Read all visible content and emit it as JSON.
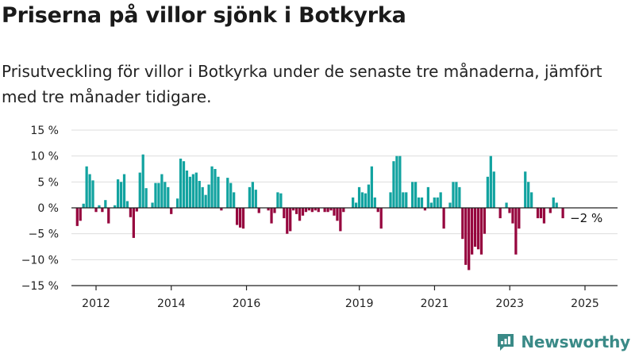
{
  "title": "Priserna på villor sjönk i Botkyrka",
  "subtitle": "Prisutveckling för villor i Botkyrka under de senaste tre månaderna, jämfört med tre månader tidigare.",
  "brand": {
    "name": "Newsworthy",
    "icon": "newsworthy-logo-icon"
  },
  "colors": {
    "positive": "#12a3a0",
    "negative": "#96063e",
    "grid": "#dddddd",
    "axis": "#222222",
    "brand": "#3a8a87"
  },
  "chart_data": {
    "type": "bar",
    "x_unit": "year",
    "x_start": 2011.5,
    "x_step": 0.0833,
    "values": [
      -3.5,
      -2.5,
      0.8,
      8.0,
      6.5,
      5.3,
      -0.8,
      0.5,
      -0.8,
      1.5,
      -3.0,
      0,
      0.5,
      5.5,
      5.0,
      6.5,
      1.3,
      -1.8,
      -5.8,
      -0.7,
      6.8,
      10.3,
      3.8,
      0,
      1.0,
      4.8,
      4.8,
      6.5,
      5.0,
      4.0,
      -1.2,
      0,
      1.8,
      9.5,
      9.0,
      7.2,
      6.0,
      6.5,
      6.8,
      5.2,
      4.0,
      2.5,
      4.5,
      8.0,
      7.5,
      6.0,
      -0.5,
      0,
      5.8,
      4.8,
      3.0,
      -3.3,
      -3.8,
      -4.0,
      0,
      4.0,
      5.0,
      3.5,
      -1.0,
      0,
      0,
      -0.5,
      -3.0,
      -1.0,
      3.0,
      2.8,
      -2.0,
      -5.0,
      -4.5,
      -0.5,
      -1.2,
      -2.5,
      -1.5,
      -0.8,
      -0.5,
      -0.8,
      -0.5,
      -0.8,
      0,
      -0.8,
      -0.8,
      -0.5,
      -1.5,
      -2.5,
      -4.5,
      -0.8,
      0,
      0,
      2.0,
      1.0,
      4.0,
      3.0,
      2.8,
      4.5,
      8.0,
      2.0,
      -0.8,
      -4.0,
      0,
      0,
      3.0,
      9.0,
      10.0,
      10.0,
      3.0,
      3.0,
      0,
      5.0,
      5.0,
      2.0,
      2.0,
      -0.5,
      4.0,
      1.0,
      2.0,
      2.0,
      3.0,
      -4.0,
      0,
      1.0,
      5.0,
      5.0,
      4.0,
      -6.0,
      -11.0,
      -12.0,
      -9.0,
      -7.5,
      -8.0,
      -9.0,
      -5.0,
      6.0,
      10.0,
      7.0,
      0,
      -2.0,
      0,
      1.0,
      -1.0,
      -3.0,
      -9.0,
      -4.0,
      0,
      7.0,
      5.0,
      3.0,
      0,
      -2.0,
      -2.0,
      -3.0,
      0,
      -1.0,
      2.0,
      1.0,
      0,
      -2.0
    ],
    "ylim": [
      -15,
      15
    ],
    "yticks": [
      15,
      10,
      5,
      0,
      -5,
      -10,
      -15
    ],
    "ytick_labels": [
      "15 %",
      "10 %",
      "5 %",
      "0 %",
      "−5 %",
      "−10 %",
      "−15 %"
    ],
    "xticks": [
      2012,
      2014,
      2016,
      2019,
      2021,
      2023,
      2025
    ],
    "xtick_labels": [
      "2012",
      "2014",
      "2016",
      "2019",
      "2021",
      "2023",
      "2025"
    ],
    "annotations": [
      {
        "text": "−2 %",
        "value": -2
      }
    ],
    "grid": true,
    "xlabel": "",
    "ylabel": ""
  }
}
